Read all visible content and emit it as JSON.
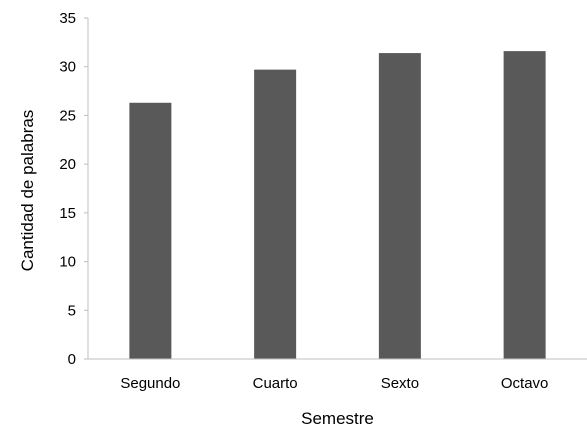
{
  "chart_data": {
    "type": "bar",
    "categories": [
      "Segundo",
      "Cuarto",
      "Sexto",
      "Octavo"
    ],
    "values": [
      26.3,
      29.7,
      31.4,
      31.6
    ],
    "xlabel": "Semestre",
    "ylabel": "Cantidad de palabras",
    "ylim": [
      0,
      35
    ],
    "yticks": [
      0,
      5,
      10,
      15,
      20,
      25,
      30,
      35
    ],
    "grid": false,
    "legend": "none",
    "bar_color": "#595959"
  }
}
